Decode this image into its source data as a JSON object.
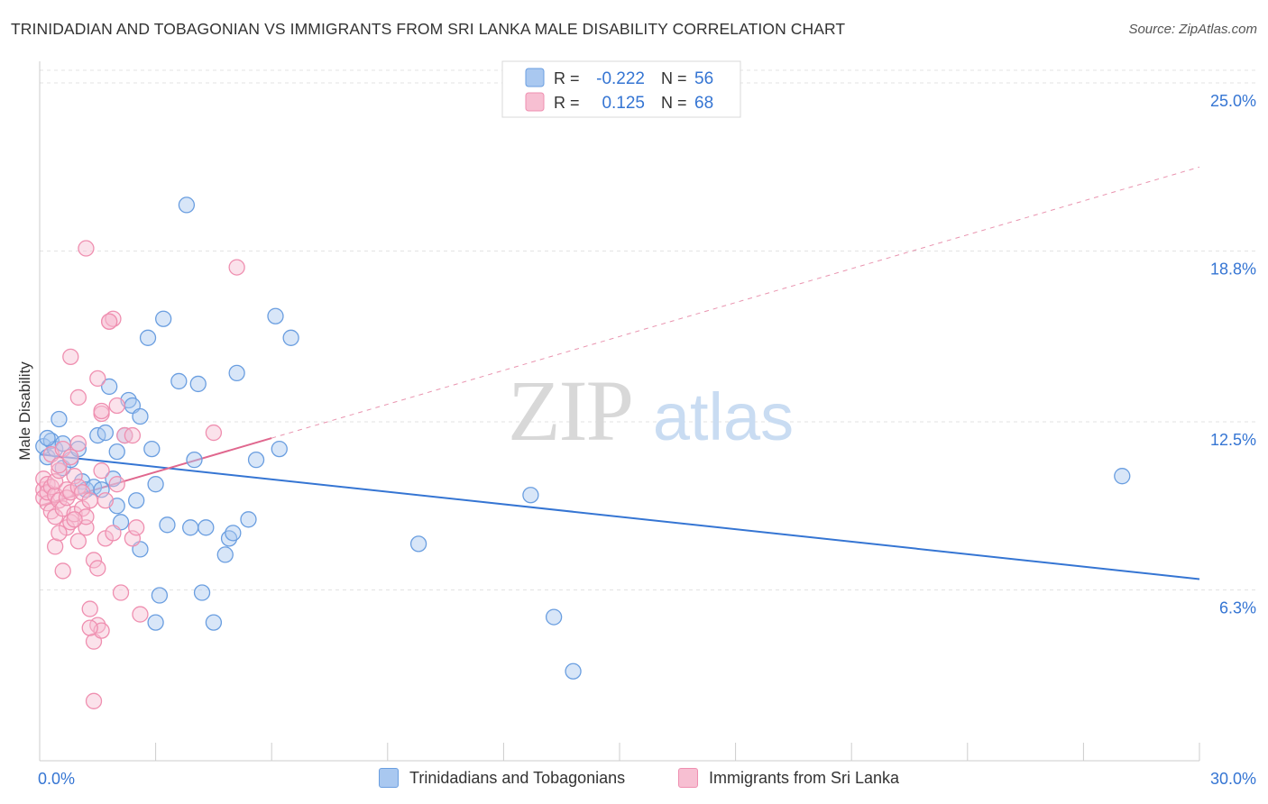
{
  "chart_data": {
    "type": "scatter",
    "title": "TRINIDADIAN AND TOBAGONIAN VS IMMIGRANTS FROM SRI LANKA MALE DISABILITY CORRELATION CHART",
    "source": "Source: ZipAtlas.com",
    "ylabel": "Male Disability",
    "xlim": [
      0,
      30
    ],
    "ylim": [
      0,
      25.8
    ],
    "y_ticks": [
      {
        "value": 6.3,
        "label": "6.3%"
      },
      {
        "value": 12.5,
        "label": "12.5%"
      },
      {
        "value": 18.8,
        "label": "18.8%"
      },
      {
        "value": 25.0,
        "label": "25.0%"
      }
    ],
    "x_tick_labels": {
      "min": "0.0%",
      "max": "30.0%"
    },
    "x_minor_ticks": [
      0,
      3,
      6,
      9,
      12,
      15,
      18,
      21,
      24,
      27,
      30
    ],
    "watermark": {
      "zip": "ZIP",
      "atlas": "atlas"
    },
    "legend_stats": [
      {
        "r_label": "R =",
        "r_value": "-0.222",
        "n_label": "N =",
        "n_value": "56"
      },
      {
        "r_label": "R =",
        "r_value": "0.125",
        "n_label": "N =",
        "n_value": "68"
      }
    ],
    "series": [
      {
        "name": "Trinidadians and Tobagonians",
        "color": "#6a9ee0",
        "fill": "#a9c8f0",
        "line_color": "#3575d3",
        "trend": {
          "x0": 0,
          "y0": 11.3,
          "x1": 30,
          "y1": 6.7,
          "dash_x1": 30
        },
        "points": [
          [
            0.1,
            11.6
          ],
          [
            0.2,
            11.2
          ],
          [
            0.3,
            11.8
          ],
          [
            0.4,
            11.5
          ],
          [
            0.5,
            12.6
          ],
          [
            0.6,
            11.7
          ],
          [
            0.6,
            10.8
          ],
          [
            0.8,
            11.1
          ],
          [
            1.0,
            11.5
          ],
          [
            1.1,
            10.3
          ],
          [
            1.2,
            10.0
          ],
          [
            1.4,
            10.1
          ],
          [
            1.5,
            12.0
          ],
          [
            1.6,
            10.0
          ],
          [
            1.7,
            12.1
          ],
          [
            1.8,
            13.8
          ],
          [
            1.9,
            10.4
          ],
          [
            2.0,
            9.4
          ],
          [
            2.0,
            11.4
          ],
          [
            2.1,
            8.8
          ],
          [
            2.2,
            12.0
          ],
          [
            2.3,
            13.3
          ],
          [
            2.4,
            13.1
          ],
          [
            2.5,
            9.6
          ],
          [
            2.6,
            12.7
          ],
          [
            2.6,
            7.8
          ],
          [
            2.8,
            15.6
          ],
          [
            2.9,
            11.5
          ],
          [
            3.0,
            10.2
          ],
          [
            3.0,
            5.1
          ],
          [
            3.2,
            16.3
          ],
          [
            3.1,
            6.1
          ],
          [
            3.3,
            8.7
          ],
          [
            3.6,
            14.0
          ],
          [
            3.8,
            20.5
          ],
          [
            3.9,
            8.6
          ],
          [
            4.0,
            11.1
          ],
          [
            4.1,
            13.9
          ],
          [
            4.2,
            6.2
          ],
          [
            4.3,
            8.6
          ],
          [
            4.5,
            5.1
          ],
          [
            4.8,
            7.6
          ],
          [
            4.9,
            8.2
          ],
          [
            5.0,
            8.4
          ],
          [
            5.1,
            14.3
          ],
          [
            5.4,
            8.9
          ],
          [
            5.6,
            11.1
          ],
          [
            6.1,
            16.4
          ],
          [
            6.2,
            11.5
          ],
          [
            6.5,
            15.6
          ],
          [
            9.8,
            8.0
          ],
          [
            12.7,
            9.8
          ],
          [
            13.3,
            5.3
          ],
          [
            13.8,
            3.3
          ],
          [
            28.0,
            10.5
          ],
          [
            0.2,
            11.9
          ]
        ]
      },
      {
        "name": "Immigrants from Sri Lanka",
        "color": "#ef8fb0",
        "fill": "#f7bfd2",
        "line_color": "#e0678e",
        "trend": {
          "x0": 0,
          "y0": 9.4,
          "x1": 6.0,
          "y1": 11.9,
          "dash_x1": 30
        },
        "points": [
          [
            0.1,
            10.0
          ],
          [
            0.1,
            9.7
          ],
          [
            0.1,
            10.4
          ],
          [
            0.2,
            10.2
          ],
          [
            0.2,
            9.5
          ],
          [
            0.2,
            9.9
          ],
          [
            0.3,
            9.2
          ],
          [
            0.3,
            10.1
          ],
          [
            0.3,
            11.3
          ],
          [
            0.4,
            9.8
          ],
          [
            0.4,
            10.3
          ],
          [
            0.4,
            9.0
          ],
          [
            0.4,
            7.9
          ],
          [
            0.5,
            10.7
          ],
          [
            0.5,
            9.6
          ],
          [
            0.5,
            10.9
          ],
          [
            0.6,
            11.5
          ],
          [
            0.6,
            9.3
          ],
          [
            0.6,
            7.0
          ],
          [
            0.7,
            10.0
          ],
          [
            0.7,
            8.6
          ],
          [
            0.7,
            9.7
          ],
          [
            0.8,
            11.2
          ],
          [
            0.8,
            9.9
          ],
          [
            0.8,
            8.8
          ],
          [
            0.9,
            10.5
          ],
          [
            0.9,
            9.1
          ],
          [
            1.0,
            10.1
          ],
          [
            1.0,
            8.1
          ],
          [
            1.1,
            9.9
          ],
          [
            1.1,
            9.3
          ],
          [
            1.2,
            8.6
          ],
          [
            1.2,
            18.9
          ],
          [
            1.3,
            9.6
          ],
          [
            1.3,
            5.6
          ],
          [
            1.4,
            7.4
          ],
          [
            1.4,
            4.4
          ],
          [
            1.5,
            5.0
          ],
          [
            1.5,
            7.1
          ],
          [
            1.6,
            12.8
          ],
          [
            1.6,
            10.7
          ],
          [
            1.7,
            9.6
          ],
          [
            1.7,
            8.2
          ],
          [
            1.8,
            16.2
          ],
          [
            1.9,
            8.4
          ],
          [
            1.9,
            16.3
          ],
          [
            2.0,
            13.1
          ],
          [
            2.0,
            10.2
          ],
          [
            2.1,
            6.2
          ],
          [
            2.2,
            12.0
          ],
          [
            2.4,
            8.2
          ],
          [
            2.5,
            8.6
          ],
          [
            2.6,
            5.4
          ],
          [
            1.4,
            2.2
          ],
          [
            5.1,
            18.2
          ],
          [
            4.5,
            12.1
          ],
          [
            1.5,
            14.1
          ],
          [
            1.6,
            12.9
          ],
          [
            2.4,
            12.0
          ],
          [
            1.0,
            13.4
          ],
          [
            0.8,
            14.9
          ],
          [
            1.8,
            16.2
          ],
          [
            1.2,
            9.0
          ],
          [
            1.0,
            11.7
          ],
          [
            1.6,
            4.8
          ],
          [
            1.3,
            4.9
          ],
          [
            0.9,
            8.9
          ],
          [
            0.5,
            8.4
          ]
        ]
      }
    ]
  }
}
